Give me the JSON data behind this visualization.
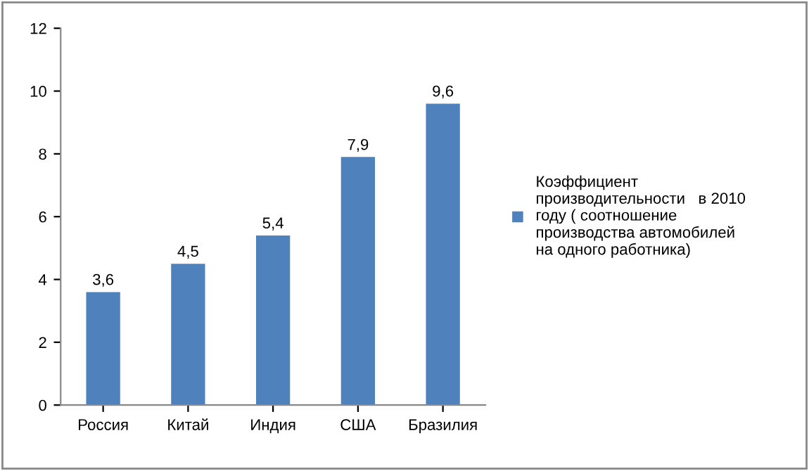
{
  "chart_data": {
    "type": "bar",
    "categories": [
      "Россия",
      "Китай",
      "Индия",
      "США",
      "Бразилия"
    ],
    "series": [
      {
        "name": "Коэффициент\nпроизводительности   в 2010\nгоду ( соотношение\nпроизводства автомобилей\nна одного работника)",
        "color": "#4f81bd",
        "values": [
          3.6,
          4.5,
          5.4,
          7.9,
          9.6
        ],
        "value_labels": [
          "3,6",
          "4,5",
          "5,4",
          "7,9",
          "9,6"
        ]
      }
    ],
    "ylim": [
      0,
      12
    ],
    "yticks": [
      0,
      2,
      4,
      6,
      8,
      10,
      12
    ],
    "grid": false,
    "legend": "right"
  }
}
